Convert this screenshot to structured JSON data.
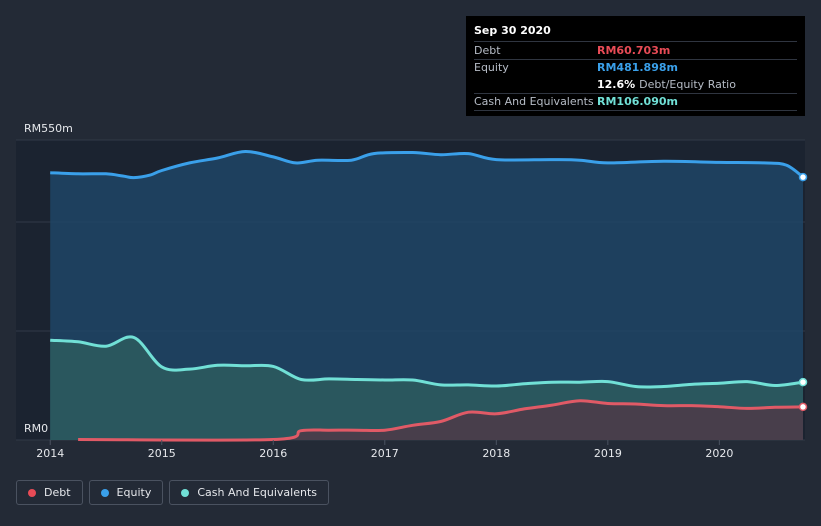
{
  "chart_data": {
    "type": "area",
    "y_top_label": "RM550m",
    "y_bottom_label": "RM0",
    "ylim": [
      0,
      550
    ],
    "x_ticks": [
      "2014",
      "2015",
      "2016",
      "2017",
      "2018",
      "2019",
      "2020"
    ],
    "xlim": [
      2013.98,
      2020.75
    ],
    "series": [
      {
        "name": "Equity",
        "color": "#3aa0ea",
        "fill": "#1e4566",
        "points": [
          [
            2014.0,
            490
          ],
          [
            2014.25,
            488
          ],
          [
            2014.5,
            488
          ],
          [
            2014.65,
            484
          ],
          [
            2014.75,
            481
          ],
          [
            2014.9,
            486
          ],
          [
            2015.0,
            494
          ],
          [
            2015.25,
            508
          ],
          [
            2015.5,
            517
          ],
          [
            2015.75,
            529
          ],
          [
            2016.0,
            519
          ],
          [
            2016.2,
            508
          ],
          [
            2016.4,
            513
          ],
          [
            2016.7,
            513
          ],
          [
            2016.9,
            525
          ],
          [
            2017.25,
            527
          ],
          [
            2017.5,
            523
          ],
          [
            2017.75,
            525
          ],
          [
            2018.0,
            514
          ],
          [
            2018.5,
            514
          ],
          [
            2018.75,
            513
          ],
          [
            2019.0,
            508
          ],
          [
            2019.5,
            511
          ],
          [
            2020.0,
            509
          ],
          [
            2020.4,
            508
          ],
          [
            2020.6,
            504
          ],
          [
            2020.75,
            481.9
          ]
        ]
      },
      {
        "name": "Cash And Equivalents",
        "color": "#71e0d6",
        "fill": "#2d5c5e",
        "points": [
          [
            2014.0,
            183
          ],
          [
            2014.25,
            180
          ],
          [
            2014.5,
            172
          ],
          [
            2014.75,
            188
          ],
          [
            2015.0,
            134
          ],
          [
            2015.25,
            130
          ],
          [
            2015.5,
            137
          ],
          [
            2015.75,
            136
          ],
          [
            2016.0,
            135
          ],
          [
            2016.25,
            111
          ],
          [
            2016.5,
            112
          ],
          [
            2016.75,
            111
          ],
          [
            2017.0,
            110
          ],
          [
            2017.25,
            110
          ],
          [
            2017.5,
            101
          ],
          [
            2017.75,
            101
          ],
          [
            2018.0,
            99
          ],
          [
            2018.25,
            103
          ],
          [
            2018.5,
            106
          ],
          [
            2018.75,
            106
          ],
          [
            2019.0,
            107
          ],
          [
            2019.25,
            98
          ],
          [
            2019.5,
            98
          ],
          [
            2019.75,
            102
          ],
          [
            2020.0,
            104
          ],
          [
            2020.25,
            107
          ],
          [
            2020.5,
            100
          ],
          [
            2020.75,
            106.09
          ]
        ]
      },
      {
        "name": "Debt",
        "color": "#e05a66",
        "fill": "#4d3a48",
        "points": [
          [
            2014.25,
            1
          ],
          [
            2016.0,
            1
          ],
          [
            2016.25,
            17
          ],
          [
            2016.5,
            18
          ],
          [
            2016.75,
            18
          ],
          [
            2017.0,
            18
          ],
          [
            2017.25,
            27
          ],
          [
            2017.5,
            34
          ],
          [
            2017.75,
            51
          ],
          [
            2018.0,
            48
          ],
          [
            2018.25,
            57
          ],
          [
            2018.5,
            64
          ],
          [
            2018.75,
            72
          ],
          [
            2019.0,
            67
          ],
          [
            2019.25,
            66
          ],
          [
            2019.5,
            63
          ],
          [
            2019.75,
            63
          ],
          [
            2020.0,
            61
          ],
          [
            2020.25,
            58
          ],
          [
            2020.5,
            60
          ],
          [
            2020.75,
            60.703
          ]
        ]
      }
    ]
  },
  "tooltip": {
    "date": "Sep 30 2020",
    "debt_label": "Debt",
    "debt_value": "RM60.703m",
    "equity_label": "Equity",
    "equity_value": "RM481.898m",
    "ratio_value": "12.6%",
    "ratio_label": "Debt/Equity Ratio",
    "cash_label": "Cash And Equivalents",
    "cash_value": "RM106.090m"
  },
  "legend": {
    "debt": "Debt",
    "equity": "Equity",
    "cash": "Cash And Equivalents",
    "debt_color": "#e84b56",
    "equity_color": "#3aa0ea",
    "cash_color": "#71e0d6"
  }
}
